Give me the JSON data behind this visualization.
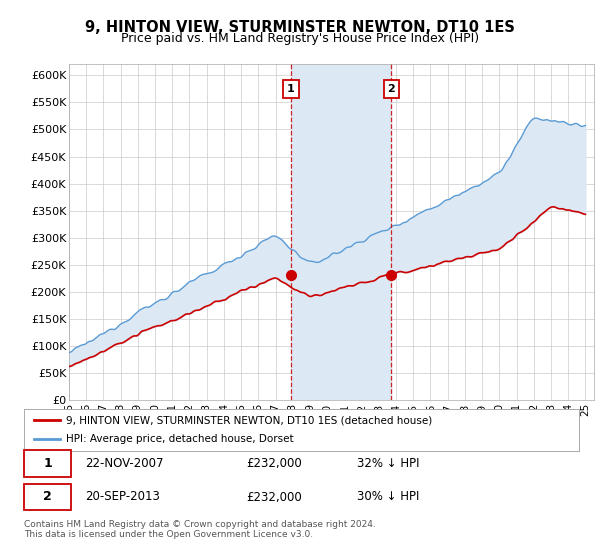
{
  "title": "9, HINTON VIEW, STURMINSTER NEWTON, DT10 1ES",
  "subtitle": "Price paid vs. HM Land Registry's House Price Index (HPI)",
  "title_fontsize": 10.5,
  "subtitle_fontsize": 9,
  "ylim": [
    0,
    620000
  ],
  "yticks": [
    0,
    50000,
    100000,
    150000,
    200000,
    250000,
    300000,
    350000,
    400000,
    450000,
    500000,
    550000,
    600000
  ],
  "ytick_labels": [
    "£0",
    "£50K",
    "£100K",
    "£150K",
    "£200K",
    "£250K",
    "£300K",
    "£350K",
    "£400K",
    "£450K",
    "£500K",
    "£550K",
    "£600K"
  ],
  "xmin": 1995.0,
  "xmax": 2025.5,
  "xtick_labels": [
    "95",
    "96",
    "97",
    "98",
    "99",
    "00",
    "01",
    "02",
    "03",
    "04",
    "05",
    "06",
    "07",
    "08",
    "09",
    "10",
    "11",
    "12",
    "13",
    "14",
    "15",
    "16",
    "17",
    "18",
    "19",
    "20",
    "21",
    "22",
    "23",
    "24",
    "25"
  ],
  "xtick_years": [
    1995,
    1996,
    1997,
    1998,
    1999,
    2000,
    2001,
    2002,
    2003,
    2004,
    2005,
    2006,
    2007,
    2008,
    2009,
    2010,
    2011,
    2012,
    2013,
    2014,
    2015,
    2016,
    2017,
    2018,
    2019,
    2020,
    2021,
    2022,
    2023,
    2024,
    2025
  ],
  "marker1_x": 2007.9,
  "marker1_y": 232000,
  "marker1_label": "1",
  "marker1_date": "22-NOV-2007",
  "marker1_price": "£232,000",
  "marker1_hpi": "32% ↓ HPI",
  "marker2_x": 2013.73,
  "marker2_y": 232000,
  "marker2_label": "2",
  "marker2_date": "20-SEP-2013",
  "marker2_price": "£232,000",
  "marker2_hpi": "30% ↓ HPI",
  "shade_color": "#dce9f5",
  "vline_color": "#cc0000",
  "legend_line1": "9, HINTON VIEW, STURMINSTER NEWTON, DT10 1ES (detached house)",
  "legend_line2": "HPI: Average price, detached house, Dorset",
  "footer": "Contains HM Land Registry data © Crown copyright and database right 2024.\nThis data is licensed under the Open Government Licence v3.0.",
  "hpi_color": "#5b9bd5",
  "property_color": "#cc0000",
  "background_color": "#ffffff",
  "grid_color": "#cccccc"
}
